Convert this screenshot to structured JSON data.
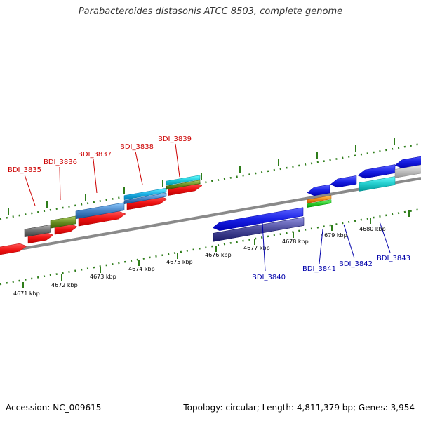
{
  "title": "Parabacteroides distasonis ATCC 8503, complete genome",
  "footer": {
    "accession": "Accession: NC_009615",
    "topology": "Topology: circular; Length: 4,811,379 bp; Genes: 3,954"
  },
  "colors": {
    "backbone": "#8a8a8a",
    "tick": "#2e7d1a",
    "forward_label": "#cc0000",
    "reverse_label": "#0000aa",
    "forward_gene": "#ee1111",
    "reverse_gene": "#1a22e6"
  },
  "scale": {
    "ticks": [
      {
        "label": "4671 kbp"
      },
      {
        "label": "4672 kbp"
      },
      {
        "label": "4673 kbp"
      },
      {
        "label": "4674 kbp"
      },
      {
        "label": "4675 kbp"
      },
      {
        "label": "4676 kbp"
      },
      {
        "label": "4677 kbp"
      },
      {
        "label": "4678 kbp"
      },
      {
        "label": "4679 kbp"
      },
      {
        "label": "4680 kbp"
      }
    ]
  },
  "gene_labels": [
    {
      "id": "BDI_3835",
      "strand": "forward"
    },
    {
      "id": "BDI_3836",
      "strand": "forward"
    },
    {
      "id": "BDI_3837",
      "strand": "forward"
    },
    {
      "id": "BDI_3838",
      "strand": "forward"
    },
    {
      "id": "BDI_3839",
      "strand": "forward"
    },
    {
      "id": "BDI_3840",
      "strand": "reverse"
    },
    {
      "id": "BDI_3841",
      "strand": "reverse"
    },
    {
      "id": "BDI_3842",
      "strand": "reverse"
    },
    {
      "id": "BDI_3843",
      "strand": "reverse"
    }
  ]
}
